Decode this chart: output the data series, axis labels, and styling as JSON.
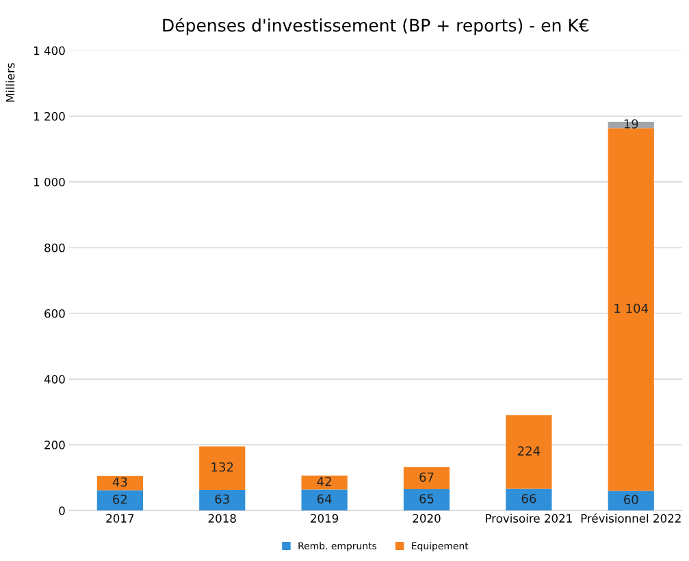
{
  "chart_data": {
    "type": "bar",
    "stacked": true,
    "title": "Dépenses d'investissement (BP + reports) - en K€",
    "ylabel": "Milliers",
    "categories": [
      "2017",
      "2018",
      "2019",
      "2020",
      "Provisoire 2021",
      "Prévisionnel 2022"
    ],
    "series": [
      {
        "name": "Remb. emprunts",
        "color": "#2f8fd8",
        "values": [
          62,
          63,
          64,
          65,
          66,
          60
        ],
        "value_labels": [
          "62",
          "63",
          "64",
          "65",
          "66",
          "60"
        ]
      },
      {
        "name": "Equipement",
        "color": "#f5821f",
        "values": [
          43,
          132,
          42,
          67,
          224,
          1104
        ],
        "value_labels": [
          "43",
          "132",
          "42",
          "67",
          "224",
          "1 104"
        ]
      },
      {
        "color": "#a2a6aa",
        "values": [
          null,
          null,
          null,
          null,
          null,
          19
        ],
        "value_labels": [
          null,
          null,
          null,
          null,
          null,
          "19"
        ]
      }
    ],
    "ylim": [
      0,
      1400
    ],
    "yticks": [
      0,
      200,
      400,
      600,
      800,
      {
        "value": 1000,
        "label": "1 000"
      },
      {
        "value": 1200,
        "label": "1 200"
      },
      {
        "value": 1400,
        "label": "1 400"
      }
    ],
    "grid": "y",
    "legend": "bottom"
  }
}
